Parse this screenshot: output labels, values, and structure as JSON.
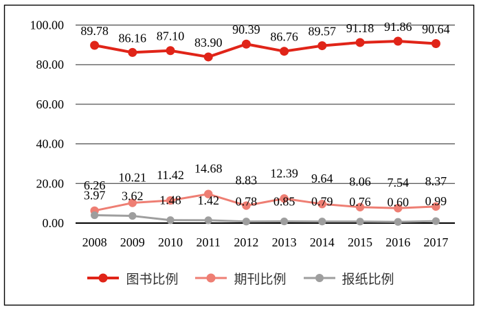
{
  "chart_data": {
    "type": "line",
    "title": "",
    "categories": [
      "2008",
      "2009",
      "2010",
      "2011",
      "2012",
      "2013",
      "2014",
      "2015",
      "2016",
      "2017"
    ],
    "series": [
      {
        "name": "图书比例",
        "color": "#e02418",
        "values": [
          89.78,
          86.16,
          87.1,
          83.9,
          90.39,
          86.76,
          89.57,
          91.18,
          91.86,
          90.64
        ]
      },
      {
        "name": "期刊比例",
        "color": "#ee7e73",
        "values": [
          6.26,
          10.21,
          11.42,
          14.68,
          8.83,
          12.39,
          9.64,
          8.06,
          7.54,
          8.37
        ]
      },
      {
        "name": "报纸比例",
        "color": "#9e9e9e",
        "values": [
          3.97,
          3.62,
          1.48,
          1.42,
          0.78,
          0.85,
          0.79,
          0.76,
          0.6,
          0.99
        ]
      }
    ],
    "ylim": [
      0,
      100
    ],
    "yticks": [
      {
        "label": "100.00",
        "value": 100
      },
      {
        "label": "80.00",
        "value": 80
      },
      {
        "label": "60.00",
        "value": 60
      },
      {
        "label": "40.00",
        "value": 40
      },
      {
        "label": "20.00",
        "value": 20
      },
      {
        "label": "0.00",
        "value": 0
      }
    ],
    "grid": true,
    "data_labels": true,
    "legend_position": "bottom",
    "axis_color": "#000000",
    "grid_color": "#262626",
    "label_color": "#000000",
    "border_color": "#000000"
  }
}
